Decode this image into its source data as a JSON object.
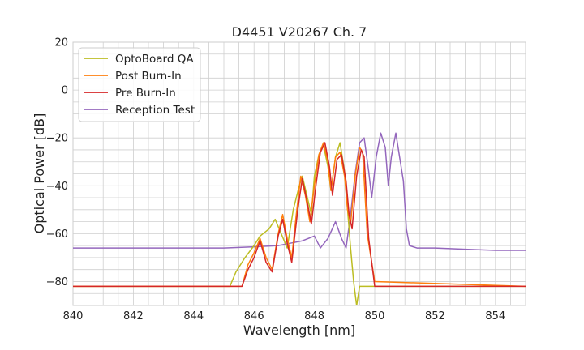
{
  "chart_data": {
    "type": "line",
    "title": "D4451 V20267 Ch. 7",
    "xlabel": "Wavelength [nm]",
    "ylabel": "Optical Power [dB]",
    "xlim": [
      840,
      855
    ],
    "ylim": [
      -90,
      20
    ],
    "xticks": [
      "840",
      "842",
      "844",
      "846",
      "848",
      "850",
      "852",
      "854"
    ],
    "yticks": [
      "20",
      "0",
      "−20",
      "−40",
      "−60",
      "−80"
    ],
    "grid": true,
    "legend_position": "top-left",
    "series": [
      {
        "name": "OptoBoard QA",
        "color": "#bcbd22",
        "points": [
          [
            840,
            -82
          ],
          [
            845.2,
            -82
          ],
          [
            845.4,
            -76
          ],
          [
            845.7,
            -70
          ],
          [
            846.0,
            -65
          ],
          [
            846.2,
            -61
          ],
          [
            846.5,
            -58
          ],
          [
            846.7,
            -54
          ],
          [
            846.9,
            -60
          ],
          [
            847.1,
            -66
          ],
          [
            847.3,
            -50
          ],
          [
            847.5,
            -40
          ],
          [
            847.6,
            -36
          ],
          [
            847.75,
            -44
          ],
          [
            847.9,
            -52
          ],
          [
            848.0,
            -36
          ],
          [
            848.15,
            -27
          ],
          [
            848.3,
            -23
          ],
          [
            848.45,
            -32
          ],
          [
            848.55,
            -42
          ],
          [
            848.7,
            -28
          ],
          [
            848.85,
            -22
          ],
          [
            849.0,
            -34
          ],
          [
            849.1,
            -50
          ],
          [
            849.2,
            -66
          ],
          [
            849.3,
            -80
          ],
          [
            849.4,
            -90
          ],
          [
            849.5,
            -82
          ],
          [
            855,
            -82
          ]
        ]
      },
      {
        "name": "Post Burn-In",
        "color": "#ff7f0e",
        "points": [
          [
            840,
            -82
          ],
          [
            845.6,
            -82
          ],
          [
            845.8,
            -73
          ],
          [
            846.0,
            -68
          ],
          [
            846.2,
            -62
          ],
          [
            846.4,
            -70
          ],
          [
            846.6,
            -75
          ],
          [
            846.8,
            -60
          ],
          [
            846.95,
            -52
          ],
          [
            847.1,
            -62
          ],
          [
            847.25,
            -70
          ],
          [
            847.4,
            -52
          ],
          [
            847.55,
            -36
          ],
          [
            847.7,
            -44
          ],
          [
            847.85,
            -55
          ],
          [
            848.0,
            -40
          ],
          [
            848.15,
            -27
          ],
          [
            848.3,
            -22
          ],
          [
            848.45,
            -30
          ],
          [
            848.55,
            -42
          ],
          [
            848.7,
            -28
          ],
          [
            848.85,
            -26
          ],
          [
            849.0,
            -36
          ],
          [
            849.1,
            -50
          ],
          [
            849.2,
            -56
          ],
          [
            849.35,
            -36
          ],
          [
            849.5,
            -24
          ],
          [
            849.6,
            -26
          ],
          [
            849.75,
            -60
          ],
          [
            850.0,
            -80
          ],
          [
            855,
            -82
          ]
        ]
      },
      {
        "name": "Pre Burn-In",
        "color": "#d62728",
        "points": [
          [
            840,
            -82
          ],
          [
            845.6,
            -82
          ],
          [
            845.8,
            -75
          ],
          [
            846.0,
            -70
          ],
          [
            846.2,
            -63
          ],
          [
            846.4,
            -72
          ],
          [
            846.6,
            -76
          ],
          [
            846.8,
            -61
          ],
          [
            846.95,
            -54
          ],
          [
            847.1,
            -64
          ],
          [
            847.25,
            -72
          ],
          [
            847.45,
            -50
          ],
          [
            847.6,
            -37
          ],
          [
            847.75,
            -46
          ],
          [
            847.9,
            -56
          ],
          [
            848.05,
            -40
          ],
          [
            848.2,
            -26
          ],
          [
            848.35,
            -22
          ],
          [
            848.5,
            -32
          ],
          [
            848.6,
            -44
          ],
          [
            848.75,
            -29
          ],
          [
            848.9,
            -27
          ],
          [
            849.05,
            -38
          ],
          [
            849.15,
            -52
          ],
          [
            849.25,
            -58
          ],
          [
            849.4,
            -36
          ],
          [
            849.55,
            -25
          ],
          [
            849.65,
            -28
          ],
          [
            849.8,
            -62
          ],
          [
            850.0,
            -82
          ],
          [
            855,
            -82
          ]
        ]
      },
      {
        "name": "Reception Test",
        "color": "#9467bd",
        "points": [
          [
            840,
            -66
          ],
          [
            843.0,
            -66
          ],
          [
            844.0,
            -66
          ],
          [
            845.0,
            -66
          ],
          [
            846.0,
            -65.5
          ],
          [
            846.8,
            -65
          ],
          [
            847.2,
            -64
          ],
          [
            847.6,
            -63
          ],
          [
            848.0,
            -61
          ],
          [
            848.2,
            -66
          ],
          [
            848.45,
            -62
          ],
          [
            848.7,
            -55
          ],
          [
            848.9,
            -62
          ],
          [
            849.05,
            -66
          ],
          [
            849.2,
            -52
          ],
          [
            849.35,
            -35
          ],
          [
            849.5,
            -22
          ],
          [
            849.65,
            -20
          ],
          [
            849.8,
            -34
          ],
          [
            849.9,
            -45
          ],
          [
            850.05,
            -28
          ],
          [
            850.2,
            -18
          ],
          [
            850.35,
            -24
          ],
          [
            850.45,
            -40
          ],
          [
            850.55,
            -28
          ],
          [
            850.7,
            -18
          ],
          [
            850.85,
            -30
          ],
          [
            850.95,
            -38
          ],
          [
            851.05,
            -58
          ],
          [
            851.15,
            -65
          ],
          [
            851.4,
            -66
          ],
          [
            852.0,
            -66
          ],
          [
            853.0,
            -66.5
          ],
          [
            854.0,
            -67
          ],
          [
            855,
            -67
          ]
        ]
      }
    ]
  }
}
